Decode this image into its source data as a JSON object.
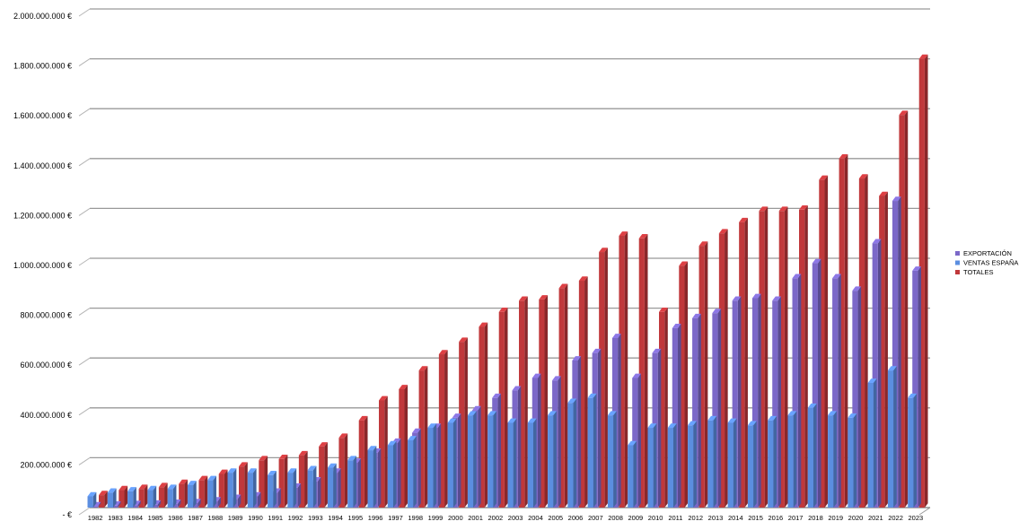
{
  "chart_data": {
    "type": "bar",
    "title": "",
    "xlabel": "",
    "ylabel": "",
    "ylim": [
      0,
      2000000000
    ],
    "yticks": [
      {
        "value": 0,
        "label": "- €"
      },
      {
        "value": 200000000,
        "label": "200.000.000 €"
      },
      {
        "value": 400000000,
        "label": "400.000.000 €"
      },
      {
        "value": 600000000,
        "label": "600.000.000 €"
      },
      {
        "value": 800000000,
        "label": "800.000.000 €"
      },
      {
        "value": 1000000000,
        "label": "1.000.000.000 €"
      },
      {
        "value": 1200000000,
        "label": "1.200.000.000 €"
      },
      {
        "value": 1400000000,
        "label": "1.400.000.000 €"
      },
      {
        "value": 1600000000,
        "label": "1.600.000.000 €"
      },
      {
        "value": 1800000000,
        "label": "1.800.000.000 €"
      },
      {
        "value": 2000000000,
        "label": "2.000.000.000 €"
      }
    ],
    "grid": true,
    "legend_position": "right",
    "categories": [
      "1982",
      "1983",
      "1984",
      "1985",
      "1986",
      "1987",
      "1988",
      "1989",
      "1990",
      "1991",
      "1992",
      "1993",
      "1994",
      "1995",
      "1996",
      "1997",
      "1998",
      "1999",
      "2000",
      "2001",
      "2002",
      "2003",
      "2004",
      "2005",
      "2006",
      "2007",
      "2008",
      "2009",
      "2010",
      "2011",
      "2012",
      "2013",
      "2014",
      "2015",
      "2016",
      "2017",
      "2018",
      "2019",
      "2020",
      "2021",
      "2022",
      "2023"
    ],
    "series": [
      {
        "name": "EXPORTACIÓN",
        "color": "#7b68c8",
        "values": [
          5000000,
          8000000,
          10000000,
          12000000,
          15000000,
          18000000,
          25000000,
          35000000,
          45000000,
          60000000,
          80000000,
          105000000,
          140000000,
          180000000,
          220000000,
          260000000,
          300000000,
          320000000,
          360000000,
          390000000,
          440000000,
          470000000,
          520000000,
          510000000,
          590000000,
          620000000,
          680000000,
          520000000,
          620000000,
          720000000,
          760000000,
          780000000,
          830000000,
          840000000,
          830000000,
          920000000,
          980000000,
          920000000,
          870000000,
          1060000000,
          1230000000,
          950000000
        ]
      },
      {
        "name": "VENTAS ESPAÑA",
        "color": "#5b8ee0",
        "values": [
          45000000,
          60000000,
          65000000,
          70000000,
          75000000,
          90000000,
          110000000,
          140000000,
          140000000,
          130000000,
          140000000,
          150000000,
          160000000,
          190000000,
          230000000,
          250000000,
          270000000,
          320000000,
          340000000,
          370000000,
          370000000,
          340000000,
          340000000,
          370000000,
          420000000,
          440000000,
          370000000,
          250000000,
          320000000,
          320000000,
          330000000,
          350000000,
          340000000,
          330000000,
          350000000,
          370000000,
          400000000,
          370000000,
          360000000,
          500000000,
          550000000,
          440000000
        ]
      },
      {
        "name": "TOTALES",
        "color": "#c0383b",
        "values": [
          50000000,
          70000000,
          75000000,
          82000000,
          95000000,
          110000000,
          135000000,
          165000000,
          190000000,
          195000000,
          210000000,
          245000000,
          280000000,
          350000000,
          430000000,
          475000000,
          550000000,
          615000000,
          665000000,
          725000000,
          785000000,
          830000000,
          835000000,
          880000000,
          910000000,
          1025000000,
          1090000000,
          1080000000,
          785000000,
          970000000,
          1050000000,
          1100000000,
          1145000000,
          1190000000,
          1190000000,
          1195000000,
          1315000000,
          1400000000,
          1320000000,
          1250000000,
          1575000000,
          1800000000
        ]
      }
    ]
  }
}
